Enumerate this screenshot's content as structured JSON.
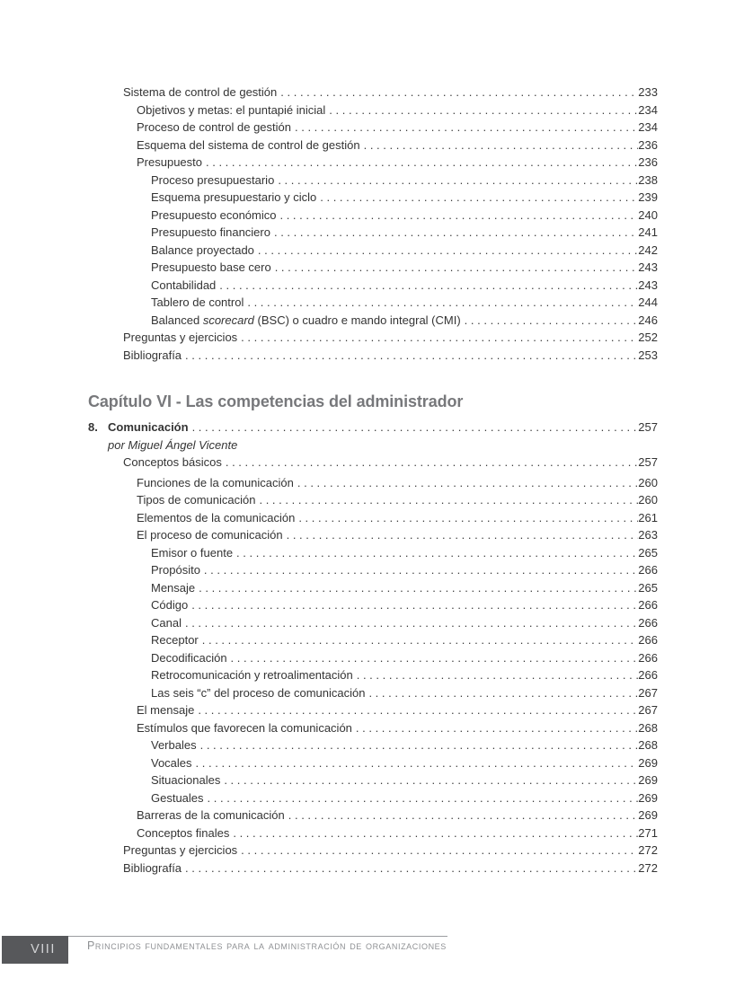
{
  "toc": {
    "before_chapter": [
      {
        "level": 1,
        "label": "Sistema de control de gestión",
        "page": "233"
      },
      {
        "level": 2,
        "label": "Objetivos y metas: el puntapié inicial",
        "page": "234"
      },
      {
        "level": 2,
        "label": "Proceso de control de gestión",
        "page": "234"
      },
      {
        "level": 2,
        "label": "Esquema del sistema de control de gestión",
        "page": "236"
      },
      {
        "level": 2,
        "label": "Presupuesto",
        "page": "236"
      },
      {
        "level": 3,
        "label": "Proceso presupuestario",
        "page": "238"
      },
      {
        "level": 3,
        "label": "Esquema presupuestario y ciclo",
        "page": "239"
      },
      {
        "level": 3,
        "label": "Presupuesto económico",
        "page": "240"
      },
      {
        "level": 3,
        "label": "Presupuesto financiero",
        "page": "241"
      },
      {
        "level": 3,
        "label": "Balance proyectado",
        "page": "242"
      },
      {
        "level": 3,
        "label": "Presupuesto base cero",
        "page": "243"
      },
      {
        "level": 3,
        "label": "Contabilidad",
        "page": "243"
      },
      {
        "level": 3,
        "label": "Tablero de control",
        "page": "244"
      },
      {
        "level": 3,
        "label_pre": "Balanced ",
        "label_italic": "scorecard",
        "label_post": " (BSC) o cuadro e mando integral (CMI)",
        "page": "246"
      },
      {
        "level": 1,
        "label": "Preguntas y ejercicios",
        "page": "252"
      },
      {
        "level": 1,
        "label": "Bibliografía",
        "page": "253"
      }
    ],
    "chapter_heading": "Capítulo VI - Las competencias del administrador",
    "chapter_entry": {
      "number": "8.",
      "label": "Comunicación",
      "page": "257",
      "byline": "por Miguel Ángel Vicente"
    },
    "chapter_rows": [
      {
        "level": 1,
        "label": "Conceptos básicos",
        "page": "257",
        "gap_after": true
      },
      {
        "level": 2,
        "label": "Funciones de la comunicación",
        "page": "260"
      },
      {
        "level": 2,
        "label": "Tipos de comunicación",
        "page": "260"
      },
      {
        "level": 2,
        "label": "Elementos de la comunicación",
        "page": "261"
      },
      {
        "level": 2,
        "label": "El proceso de comunicación",
        "page": "263"
      },
      {
        "level": 3,
        "label": "Emisor o fuente",
        "page": "265"
      },
      {
        "level": 3,
        "label": "Propósito",
        "page": "266"
      },
      {
        "level": 3,
        "label": "Mensaje",
        "page": "265"
      },
      {
        "level": 3,
        "label": "Código",
        "page": "266"
      },
      {
        "level": 3,
        "label": "Canal",
        "page": "266"
      },
      {
        "level": 3,
        "label": "Receptor",
        "page": "266"
      },
      {
        "level": 3,
        "label": "Decodificación",
        "page": "266"
      },
      {
        "level": 3,
        "label": "Retrocomunicación y retroalimentación",
        "page": "266"
      },
      {
        "level": 3,
        "label": "Las seis “c” del proceso de comunicación",
        "page": "267"
      },
      {
        "level": 2,
        "label": "El mensaje",
        "page": "267"
      },
      {
        "level": 2,
        "label": "Estímulos que favorecen la comunicación",
        "page": "268"
      },
      {
        "level": 3,
        "label": "Verbales",
        "page": "268"
      },
      {
        "level": 3,
        "label": "Vocales",
        "page": "269"
      },
      {
        "level": 3,
        "label": "Situacionales",
        "page": "269"
      },
      {
        "level": 3,
        "label": "Gestuales",
        "page": "269"
      },
      {
        "level": 2,
        "label": "Barreras de la comunicación",
        "page": "269"
      },
      {
        "level": 2,
        "label": "Conceptos finales",
        "page": "271"
      },
      {
        "level": 1,
        "label": "Preguntas y ejercicios",
        "page": "272"
      },
      {
        "level": 1,
        "label": "Bibliografía",
        "page": "272"
      }
    ]
  },
  "footer": {
    "page_number": "VIII",
    "book_title": "Principios fundamentales para la administración de organizaciones"
  }
}
